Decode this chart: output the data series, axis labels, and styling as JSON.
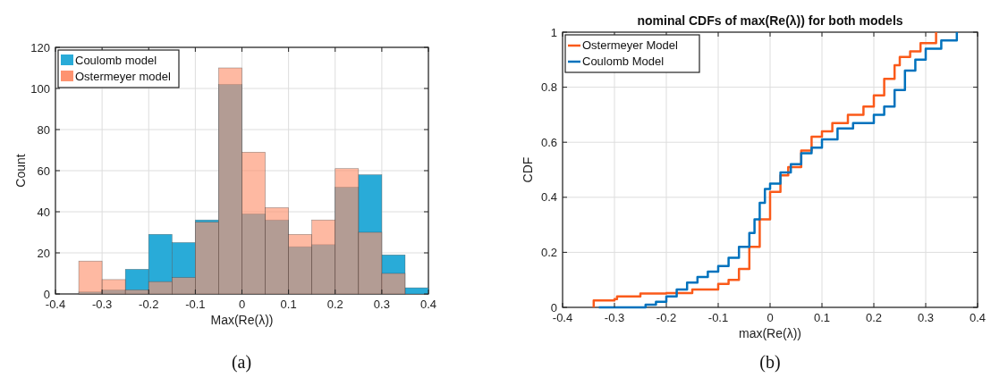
{
  "chart_data": [
    {
      "type": "histogram",
      "xlabel": "Max(Re(λ))",
      "ylabel": "Count",
      "annotations": [
        "(a)"
      ],
      "bins": [
        -0.35,
        -0.3,
        -0.25,
        -0.2,
        -0.15,
        -0.1,
        -0.05,
        0,
        0.05,
        0.1,
        0.15,
        0.2,
        0.25,
        0.3,
        0.35,
        0.4
      ],
      "series": [
        {
          "name": "Coulomb model",
          "color": "#29abd8",
          "values": [
            1,
            2,
            12,
            29,
            25,
            36,
            102,
            39,
            36,
            23,
            24,
            52,
            58,
            19,
            3
          ]
        },
        {
          "name": "Ostermeyer model",
          "color": "#fe9370",
          "values": [
            16,
            7,
            2,
            6,
            8,
            35,
            110,
            69,
            42,
            29,
            36,
            61,
            30,
            10,
            0
          ]
        }
      ],
      "xlim": [
        -0.4,
        0.4
      ],
      "xticks": [
        -0.4,
        -0.3,
        -0.2,
        -0.1,
        0,
        0.1,
        0.2,
        0.3,
        0.4
      ],
      "ylim": [
        0,
        120
      ],
      "yticks": [
        0,
        20,
        40,
        60,
        80,
        100,
        120
      ],
      "grid": true,
      "legend": "top left"
    },
    {
      "type": "step",
      "title": "nominal CDFs of max(Re(λ)) for both models",
      "xlabel": "max(Re(λ))",
      "ylabel": "CDF",
      "annotations": [
        "(b)"
      ],
      "series": [
        {
          "name": "Ostermeyer Model",
          "color": "#fa5a1a",
          "x": [
            -0.34,
            -0.34,
            -0.3,
            -0.295,
            -0.25,
            -0.2,
            -0.15,
            -0.1,
            -0.08,
            -0.06,
            -0.04,
            -0.02,
            0,
            0.02,
            0.035,
            0.06,
            0.08,
            0.1,
            0.12,
            0.15,
            0.18,
            0.2,
            0.22,
            0.24,
            0.25,
            0.27,
            0.29,
            0.32
          ],
          "values": [
            0,
            0.025,
            0.03,
            0.04,
            0.05,
            0.052,
            0.065,
            0.085,
            0.1,
            0.14,
            0.22,
            0.32,
            0.42,
            0.48,
            0.51,
            0.57,
            0.62,
            0.64,
            0.67,
            0.7,
            0.73,
            0.77,
            0.83,
            0.88,
            0.91,
            0.93,
            0.96,
            1
          ]
        },
        {
          "name": "Coulomb Model",
          "color": "#0072bd",
          "x": [
            -0.33,
            -0.26,
            -0.24,
            -0.22,
            -0.2,
            -0.18,
            -0.16,
            -0.14,
            -0.12,
            -0.1,
            -0.08,
            -0.06,
            -0.04,
            -0.03,
            -0.02,
            -0.01,
            0,
            0.02,
            0.04,
            0.06,
            0.08,
            0.1,
            0.13,
            0.16,
            0.2,
            0.22,
            0.24,
            0.26,
            0.28,
            0.3,
            0.33,
            0.36
          ],
          "values": [
            0,
            0,
            0.01,
            0.02,
            0.04,
            0.065,
            0.09,
            0.11,
            0.13,
            0.15,
            0.18,
            0.22,
            0.27,
            0.32,
            0.38,
            0.43,
            0.45,
            0.49,
            0.52,
            0.56,
            0.58,
            0.61,
            0.65,
            0.67,
            0.7,
            0.73,
            0.79,
            0.86,
            0.9,
            0.94,
            0.97,
            1
          ]
        }
      ],
      "xlim": [
        -0.4,
        0.4
      ],
      "xticks": [
        -0.4,
        -0.3,
        -0.2,
        -0.1,
        0,
        0.1,
        0.2,
        0.3,
        0.4
      ],
      "ylim": [
        0,
        1
      ],
      "yticks": [
        0,
        0.2,
        0.4,
        0.6,
        0.8,
        1
      ],
      "grid": true,
      "legend": "top left"
    }
  ]
}
